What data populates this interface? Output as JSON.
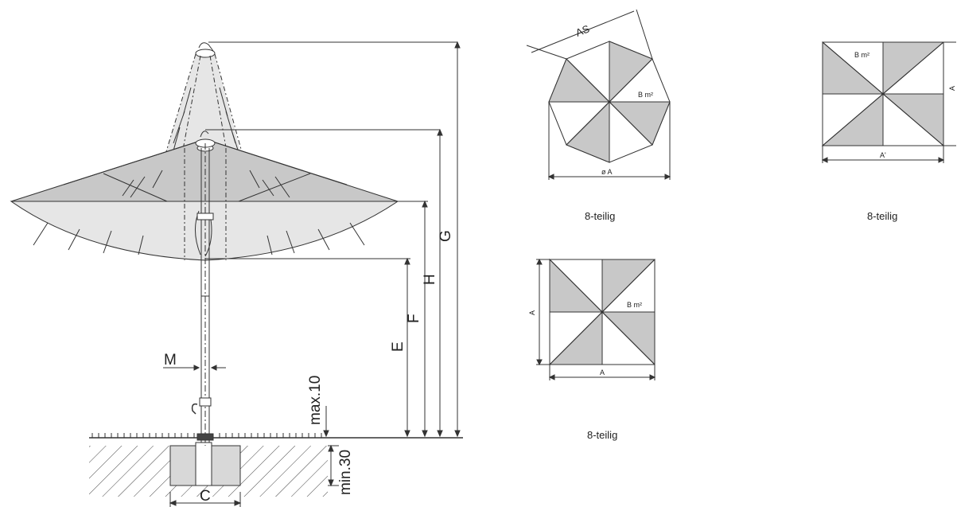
{
  "colors": {
    "line": "#333333",
    "fill_grey": "#c8c8c8",
    "fill_light": "#e6e6e6",
    "background": "#ffffff"
  },
  "side_view": {
    "dim_G": "G",
    "dim_H": "H",
    "dim_F": "F",
    "dim_E": "E",
    "dim_M": "M",
    "dim_C": "C",
    "max_label": "max.10",
    "min_label": "min.30"
  },
  "octagon": {
    "side_label": "AS",
    "area_label": "B m²",
    "diameter_label": "ø A",
    "caption": "8-teilig"
  },
  "square_small": {
    "side_label_left": "A",
    "side_label_bottom": "A",
    "area_label": "B m²",
    "caption": "8-teilig"
  },
  "rectangle": {
    "side_label_right": "A",
    "side_label_bottom": "A'",
    "area_label": "B m²",
    "caption": "8-teilig"
  }
}
